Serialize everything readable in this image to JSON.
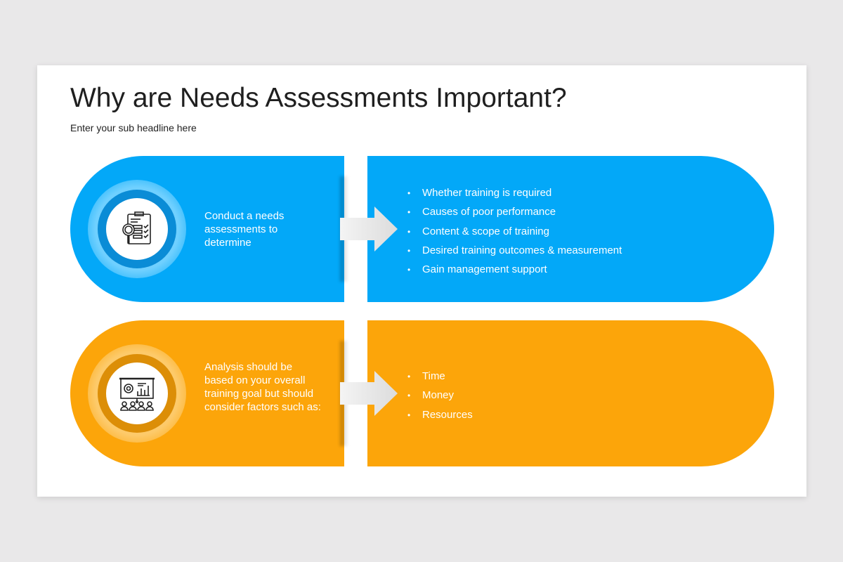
{
  "title": "Why are Needs Assessments Important?",
  "subtitle": "Enter your sub headline here",
  "colors": {
    "blue": "#03a8f8",
    "blue_ring": "#0a8cd6",
    "orange": "#fca50a",
    "orange_ring": "#dc8e07",
    "arrow": "#e8e8e8"
  },
  "rows": [
    {
      "icon": "clipboard-magnifier-icon",
      "text": "Conduct a needs assessments to determine",
      "items": [
        "Whether training is required",
        "Causes of poor performance",
        "Content & scope of training",
        "Desired training outcomes & measurement",
        "Gain management support"
      ]
    },
    {
      "icon": "presentation-audience-icon",
      "text": "Analysis should be based on your overall training goal but should consider factors such as:",
      "items": [
        "Time",
        "Money",
        "Resources"
      ]
    }
  ]
}
